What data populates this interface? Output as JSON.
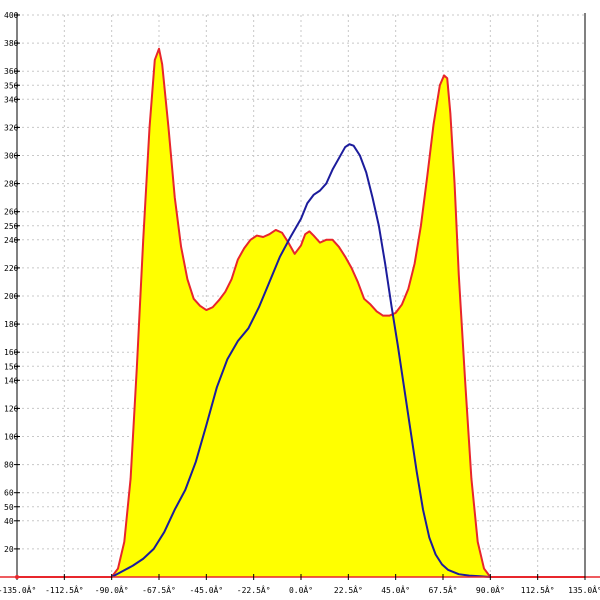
{
  "chart_data": {
    "type": "area",
    "title": "",
    "xlabel": "",
    "ylabel": "",
    "xlim": [
      -135,
      135
    ],
    "ylim": [
      0,
      400
    ],
    "grid": true,
    "x_ticks": [
      {
        "value": -135,
        "label": "-135.0Â°"
      },
      {
        "value": -112.5,
        "label": "-112.5Â°"
      },
      {
        "value": -90,
        "label": "-90.0Â°"
      },
      {
        "value": -67.5,
        "label": "-67.5Â°"
      },
      {
        "value": -45,
        "label": "-45.0Â°"
      },
      {
        "value": -22.5,
        "label": "-22.5Â°"
      },
      {
        "value": 0,
        "label": "0.0Â°"
      },
      {
        "value": 22.5,
        "label": "22.5Â°"
      },
      {
        "value": 45,
        "label": "45.0Â°"
      },
      {
        "value": 67.5,
        "label": "67.5Â°"
      },
      {
        "value": 90,
        "label": "90.0Â°"
      },
      {
        "value": 112.5,
        "label": "112.5Â°"
      },
      {
        "value": 135,
        "label": "135.0Â°"
      }
    ],
    "y_ticks": [
      {
        "value": 20,
        "label": "20"
      },
      {
        "value": 40,
        "label": "40"
      },
      {
        "value": 50,
        "label": "50"
      },
      {
        "value": 60,
        "label": "60"
      },
      {
        "value": 80,
        "label": "80"
      },
      {
        "value": 100,
        "label": "100"
      },
      {
        "value": 120,
        "label": "120"
      },
      {
        "value": 140,
        "label": "140"
      },
      {
        "value": 150,
        "label": "150"
      },
      {
        "value": 160,
        "label": "160"
      },
      {
        "value": 180,
        "label": "180"
      },
      {
        "value": 200,
        "label": "200"
      },
      {
        "value": 220,
        "label": "220"
      },
      {
        "value": 240,
        "label": "240"
      },
      {
        "value": 250,
        "label": "250"
      },
      {
        "value": 260,
        "label": "260"
      },
      {
        "value": 280,
        "label": "280"
      },
      {
        "value": 300,
        "label": "300"
      },
      {
        "value": 320,
        "label": "320"
      },
      {
        "value": 340,
        "label": "340"
      },
      {
        "value": 350,
        "label": "350"
      },
      {
        "value": 360,
        "label": "360"
      },
      {
        "value": 380,
        "label": "380"
      },
      {
        "value": 400,
        "label": "400"
      }
    ],
    "series": [
      {
        "color": "#e8262c",
        "fill": "#ffff00",
        "points": [
          [
            -135,
            0
          ],
          [
            -90,
            0
          ],
          [
            -87,
            6
          ],
          [
            -84,
            25
          ],
          [
            -81,
            70
          ],
          [
            -78,
            150
          ],
          [
            -75,
            240
          ],
          [
            -72,
            320
          ],
          [
            -69.5,
            368
          ],
          [
            -67.5,
            376
          ],
          [
            -66,
            365
          ],
          [
            -63,
            320
          ],
          [
            -60,
            270
          ],
          [
            -57,
            235
          ],
          [
            -54,
            212
          ],
          [
            -51,
            198
          ],
          [
            -48,
            193
          ],
          [
            -45,
            190
          ],
          [
            -42,
            192
          ],
          [
            -39,
            197
          ],
          [
            -36,
            203
          ],
          [
            -33,
            212
          ],
          [
            -30,
            226
          ],
          [
            -27,
            234
          ],
          [
            -24,
            240
          ],
          [
            -21,
            243
          ],
          [
            -18,
            242
          ],
          [
            -15,
            244
          ],
          [
            -12,
            247
          ],
          [
            -9,
            245
          ],
          [
            -6,
            238
          ],
          [
            -3,
            230
          ],
          [
            0,
            236
          ],
          [
            2,
            244
          ],
          [
            4,
            246
          ],
          [
            6,
            243
          ],
          [
            9,
            238
          ],
          [
            12,
            240
          ],
          [
            15,
            240
          ],
          [
            18,
            235
          ],
          [
            21,
            228
          ],
          [
            24,
            220
          ],
          [
            27,
            210
          ],
          [
            30,
            198
          ],
          [
            33,
            194
          ],
          [
            36,
            189
          ],
          [
            39,
            186
          ],
          [
            42,
            186
          ],
          [
            45,
            188
          ],
          [
            48,
            194
          ],
          [
            51,
            205
          ],
          [
            54,
            223
          ],
          [
            57,
            250
          ],
          [
            60,
            285
          ],
          [
            63,
            322
          ],
          [
            66,
            350
          ],
          [
            68,
            357
          ],
          [
            69.5,
            355
          ],
          [
            71,
            330
          ],
          [
            73,
            280
          ],
          [
            75,
            215
          ],
          [
            78,
            140
          ],
          [
            81,
            70
          ],
          [
            84,
            25
          ],
          [
            87,
            6
          ],
          [
            90,
            0
          ],
          [
            135,
            0
          ]
        ]
      },
      {
        "color": "#1c1c9c",
        "fill": "none",
        "points": [
          [
            -90,
            0
          ],
          [
            -85,
            4
          ],
          [
            -80,
            8
          ],
          [
            -75,
            13
          ],
          [
            -70,
            20
          ],
          [
            -65,
            32
          ],
          [
            -60,
            48
          ],
          [
            -55,
            62
          ],
          [
            -50,
            82
          ],
          [
            -45,
            108
          ],
          [
            -40,
            135
          ],
          [
            -35,
            155
          ],
          [
            -30,
            168
          ],
          [
            -25,
            177
          ],
          [
            -20,
            192
          ],
          [
            -15,
            210
          ],
          [
            -10,
            228
          ],
          [
            -5,
            242
          ],
          [
            0,
            255
          ],
          [
            3,
            266
          ],
          [
            6,
            272
          ],
          [
            9,
            275
          ],
          [
            12,
            280
          ],
          [
            15,
            290
          ],
          [
            18,
            298
          ],
          [
            21,
            306
          ],
          [
            23,
            308
          ],
          [
            25,
            307
          ],
          [
            28,
            300
          ],
          [
            31,
            288
          ],
          [
            34,
            270
          ],
          [
            37,
            250
          ],
          [
            40,
            223
          ],
          [
            43,
            193
          ],
          [
            46,
            165
          ],
          [
            49,
            135
          ],
          [
            52,
            105
          ],
          [
            55,
            75
          ],
          [
            58,
            48
          ],
          [
            61,
            28
          ],
          [
            64,
            16
          ],
          [
            67,
            9
          ],
          [
            70,
            5
          ],
          [
            75,
            2
          ],
          [
            80,
            1
          ],
          [
            85,
            0.5
          ],
          [
            90,
            0
          ]
        ]
      }
    ]
  }
}
